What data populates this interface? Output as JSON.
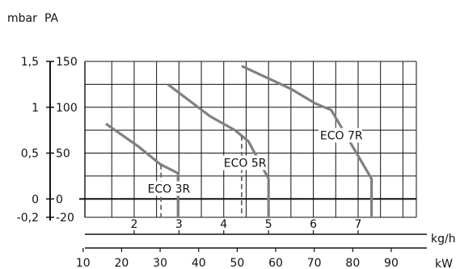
{
  "chart_data": {
    "type": "line",
    "title": "",
    "y_units": {
      "left": "mbar",
      "right": "PA"
    },
    "x_units": {
      "top": "kg/h",
      "bottom": "kW"
    },
    "ylim": [
      -20,
      150
    ],
    "xlim_kgh": [
      0.9,
      8.3
    ],
    "mbar_ticks": [
      {
        "value": 150,
        "label": "1,5"
      },
      {
        "value": 100,
        "label": "1"
      },
      {
        "value": 50,
        "label": "0,5"
      },
      {
        "value": 0,
        "label": "0"
      },
      {
        "value": -20,
        "label": "-0,2"
      }
    ],
    "pa_ticks": [
      {
        "value": 150,
        "label": "150"
      },
      {
        "value": 100,
        "label": "100"
      },
      {
        "value": 50,
        "label": "50"
      },
      {
        "value": 0,
        "label": "0"
      },
      {
        "value": -20,
        "label": "-20"
      }
    ],
    "y_grid": [
      150,
      125,
      100,
      75,
      50,
      25,
      0,
      -20
    ],
    "x_grid_kgh": [
      1.5,
      2,
      2.5,
      3,
      3.5,
      4,
      4.5,
      5,
      5.5,
      6,
      6.5,
      7,
      7.5,
      8,
      8.3
    ],
    "kgh_ticks": [
      {
        "value": 2,
        "label": "2"
      },
      {
        "value": 3,
        "label": "3"
      },
      {
        "value": 4,
        "label": "4"
      },
      {
        "value": 5,
        "label": "5"
      },
      {
        "value": 6,
        "label": "6"
      },
      {
        "value": 7,
        "label": "7"
      }
    ],
    "kw_ticks": [
      {
        "value": 0.86,
        "label": "10"
      },
      {
        "value": 1.72,
        "label": "20"
      },
      {
        "value": 2.58,
        "label": "30"
      },
      {
        "value": 3.44,
        "label": "40"
      },
      {
        "value": 4.3,
        "label": "50"
      },
      {
        "value": 5.16,
        "label": "60"
      },
      {
        "value": 6.02,
        "label": "70"
      },
      {
        "value": 6.88,
        "label": "80"
      },
      {
        "value": 7.74,
        "label": "90"
      }
    ],
    "series": [
      {
        "name": "ECO 3R",
        "x": [
          1.37,
          2.1,
          2.58,
          2.98,
          2.98
        ],
        "y": [
          82,
          57,
          38,
          28,
          -20
        ],
        "cutoff_x": 2.6,
        "label_at": [
          2.3,
          7
        ]
      },
      {
        "name": "ECO 5R",
        "x": [
          2.75,
          3.7,
          4.25,
          4.55,
          5.0,
          5.0
        ],
        "y": [
          125,
          90,
          75,
          63,
          22,
          -20
        ],
        "cutoff_x": 4.4,
        "label_at": [
          4.0,
          35
        ]
      },
      {
        "name": "ECO 7R",
        "x": [
          4.4,
          5.5,
          6.05,
          6.4,
          7.3,
          7.3
        ],
        "y": [
          145,
          120,
          104,
          97,
          22,
          -20
        ],
        "cutoff_x": null,
        "label_at": [
          6.15,
          65
        ]
      }
    ],
    "colors": {
      "series": "#808080",
      "grid": "#111111",
      "dashed": "#666666"
    }
  }
}
